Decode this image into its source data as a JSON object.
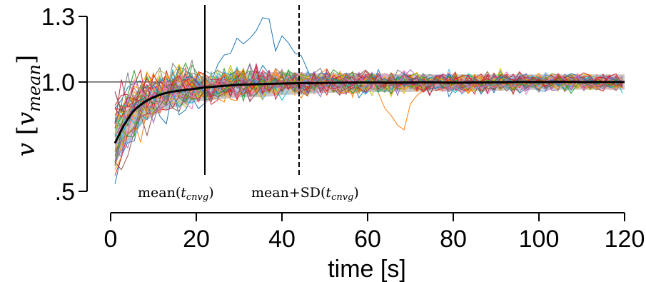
{
  "chart_data": {
    "type": "line",
    "xlabel": "time [s]",
    "ylabel": {
      "var": "v",
      "unit_base": "v",
      "unit_sub": "mean"
    },
    "xlim": [
      0,
      120
    ],
    "ylim": [
      0.5,
      1.3
    ],
    "x_ticks": [
      0,
      20,
      40,
      60,
      80,
      100,
      120
    ],
    "x_tick_labels": [
      "0",
      "20",
      "40",
      "60",
      "80",
      "100",
      "120"
    ],
    "y_ticks": [
      0.5,
      1.0,
      1.3
    ],
    "y_tick_labels": [
      ".5",
      "1.0",
      "1.3"
    ],
    "reference_line_y": 1.0,
    "vlines": [
      {
        "x": 22,
        "style": "solid",
        "label_main": "mean(",
        "label_var": "t",
        "label_sub": "cnvg",
        "label_end": ")"
      },
      {
        "x": 44,
        "style": "dashed",
        "label_main": "mean+SD(",
        "label_var": "t",
        "label_sub": "cnvg",
        "label_end": ")"
      }
    ],
    "mean_series": {
      "x": [
        1,
        2,
        3,
        4,
        5,
        6,
        8,
        10,
        12,
        14,
        16,
        18,
        20,
        22,
        25,
        28,
        30,
        35,
        40,
        45,
        50,
        55,
        60,
        65,
        70,
        75,
        80,
        85,
        90,
        95,
        100,
        105,
        110,
        115,
        120
      ],
      "y": [
        0.72,
        0.76,
        0.8,
        0.83,
        0.86,
        0.88,
        0.91,
        0.93,
        0.945,
        0.955,
        0.96,
        0.965,
        0.97,
        0.975,
        0.98,
        0.985,
        0.988,
        0.99,
        0.993,
        0.995,
        0.996,
        0.997,
        0.998,
        0.997,
        0.998,
        0.999,
        0.997,
        0.998,
        0.999,
        1.0,
        1.0,
        1.001,
        1.0,
        1.0,
        1.0
      ]
    },
    "sd_band": {
      "x": [
        1,
        3,
        5,
        8,
        12,
        16,
        20,
        25,
        30,
        35,
        40,
        50,
        60,
        70,
        80,
        90,
        100,
        110,
        120
      ],
      "lower": [
        0.62,
        0.7,
        0.76,
        0.82,
        0.87,
        0.89,
        0.91,
        0.92,
        0.93,
        0.93,
        0.94,
        0.95,
        0.955,
        0.955,
        0.96,
        0.96,
        0.965,
        0.965,
        0.965
      ],
      "upper": [
        0.82,
        0.86,
        0.9,
        0.94,
        0.99,
        1.01,
        1.02,
        1.03,
        1.04,
        1.045,
        1.045,
        1.04,
        1.04,
        1.035,
        1.035,
        1.035,
        1.035,
        1.035,
        1.035
      ]
    },
    "individual_series_colors": [
      "#1f77b4",
      "#ff7f0e",
      "#2ca02c",
      "#d62728",
      "#9467bd",
      "#8c564b",
      "#e377c2",
      "#7f7f7f",
      "#bcbd22",
      "#17becf",
      "#e6b800",
      "#ff9896",
      "#56b4e9",
      "#d62728",
      "#8c8c00",
      "#c7254e"
    ],
    "individual_series_count": 40
  },
  "colors": {
    "mean_line": "#000000",
    "band": "#b4b4b4",
    "axis": "#000000"
  }
}
